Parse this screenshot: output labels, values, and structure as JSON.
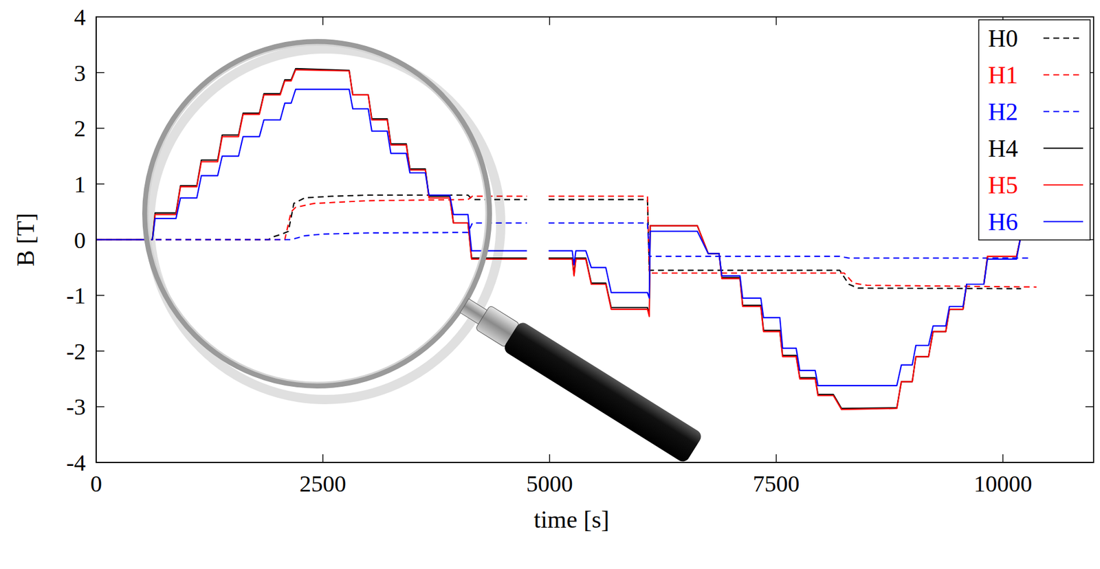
{
  "chart_data": {
    "type": "line",
    "x_label": "time [s]",
    "y_label": "B [T]",
    "xlim": [
      0,
      11000
    ],
    "ylim": [
      -4,
      4
    ],
    "xticks": [
      0,
      2500,
      5000,
      7500,
      10000
    ],
    "yticks": [
      -4,
      -3,
      -2,
      -1,
      0,
      1,
      2,
      3,
      4
    ],
    "grid": false,
    "legend": "top-right",
    "series": [
      {
        "name": "H0",
        "color": "#000000",
        "line_style": "dashed",
        "x": [
          0,
          1900,
          1950,
          2050,
          2120,
          2180,
          2300,
          2600,
          3000,
          4100,
          4150,
          4750,
          4870,
          4990,
          6080,
          6100,
          8200,
          8300,
          8400,
          10200
        ],
        "values": [
          0,
          0,
          0.05,
          0.1,
          0.15,
          0.65,
          0.75,
          0.78,
          0.8,
          0.8,
          0.72,
          0.72,
          null,
          0.72,
          0.72,
          -0.55,
          -0.55,
          -0.8,
          -0.87,
          -0.88
        ]
      },
      {
        "name": "H1",
        "color": "#ff0000",
        "line_style": "dashed",
        "x": [
          0,
          2080,
          2150,
          2200,
          2400,
          3000,
          4100,
          4150,
          4750,
          4870,
          4990,
          6080,
          6100,
          8250,
          8350,
          8500,
          10370
        ],
        "values": [
          0,
          0,
          0.5,
          0.58,
          0.65,
          0.7,
          0.72,
          0.78,
          0.78,
          null,
          0.78,
          0.78,
          -0.6,
          -0.6,
          -0.78,
          -0.82,
          -0.85
        ]
      },
      {
        "name": "H2",
        "color": "#0000ff",
        "line_style": "dashed",
        "x": [
          0,
          2150,
          2300,
          2500,
          3000,
          4100,
          4150,
          4750,
          4870,
          4990,
          6080,
          6100,
          8200,
          8300,
          10290
        ],
        "values": [
          0,
          0,
          0.07,
          0.1,
          0.12,
          0.13,
          0.3,
          0.3,
          null,
          0.3,
          0.3,
          -0.3,
          -0.3,
          -0.33,
          -0.33
        ]
      },
      {
        "name": "H4",
        "color": "#000000",
        "line_style": "solid",
        "x": [
          0,
          620,
          650,
          880,
          930,
          1110,
          1160,
          1340,
          1390,
          1570,
          1620,
          1800,
          1850,
          2030,
          2080,
          2150,
          2200,
          2790,
          2830,
          3000,
          3040,
          3210,
          3250,
          3420,
          3460,
          3630,
          3670,
          3900,
          3940,
          4100,
          4140,
          4750,
          4870,
          4990,
          5250,
          5270,
          5290,
          5400,
          5460,
          5620,
          5680,
          6080,
          6100,
          6110,
          6630,
          6750,
          6870,
          6900,
          7100,
          7130,
          7330,
          7360,
          7540,
          7570,
          7720,
          7760,
          7930,
          7960,
          8130,
          8220,
          8830,
          8880,
          9000,
          9040,
          9180,
          9230,
          9370,
          9410,
          9560,
          9600,
          9790,
          9830,
          10150,
          10190
        ],
        "values": [
          0,
          0,
          0.48,
          0.48,
          0.97,
          0.97,
          1.43,
          1.43,
          1.88,
          1.88,
          2.27,
          2.27,
          2.62,
          2.62,
          2.87,
          2.87,
          3.07,
          3.04,
          2.6,
          2.6,
          2.17,
          2.17,
          1.72,
          1.72,
          1.27,
          1.27,
          0.78,
          0.78,
          0.3,
          0.3,
          -0.33,
          -0.33,
          null,
          -0.33,
          -0.33,
          -0.62,
          -0.33,
          -0.33,
          -0.78,
          -0.78,
          -1.22,
          -1.22,
          -1.35,
          0.25,
          0.25,
          -0.25,
          -0.25,
          -0.68,
          -0.68,
          -1.18,
          -1.18,
          -1.63,
          -1.63,
          -2.08,
          -2.08,
          -2.48,
          -2.48,
          -2.78,
          -2.78,
          -3.03,
          -3.02,
          -2.55,
          -2.55,
          -2.1,
          -2.1,
          -1.65,
          -1.65,
          -1.25,
          -1.25,
          -0.8,
          -0.8,
          -0.3,
          -0.3,
          0
        ]
      },
      {
        "name": "H5",
        "color": "#ff0000",
        "line_style": "solid",
        "x": [
          0,
          620,
          650,
          880,
          930,
          1110,
          1160,
          1340,
          1390,
          1570,
          1620,
          1800,
          1850,
          2030,
          2080,
          2150,
          2200,
          2790,
          2830,
          3000,
          3040,
          3210,
          3250,
          3420,
          3460,
          3630,
          3670,
          3900,
          3940,
          4100,
          4140,
          4750,
          4870,
          4990,
          5250,
          5270,
          5290,
          5400,
          5460,
          5620,
          5680,
          6080,
          6100,
          6110,
          6630,
          6750,
          6870,
          6900,
          7100,
          7130,
          7330,
          7360,
          7540,
          7570,
          7720,
          7760,
          7930,
          7960,
          8130,
          8220,
          8830,
          8880,
          9000,
          9040,
          9180,
          9230,
          9370,
          9410,
          9560,
          9600,
          9790,
          9830,
          10150,
          10190
        ],
        "values": [
          0,
          0,
          0.45,
          0.45,
          0.95,
          0.95,
          1.4,
          1.4,
          1.85,
          1.85,
          2.25,
          2.25,
          2.6,
          2.6,
          2.85,
          2.85,
          3.05,
          3.03,
          2.6,
          2.6,
          2.15,
          2.15,
          1.7,
          1.7,
          1.25,
          1.25,
          0.75,
          0.75,
          0.3,
          0.3,
          -0.35,
          -0.35,
          null,
          -0.35,
          -0.35,
          -0.65,
          -0.35,
          -0.35,
          -0.8,
          -0.8,
          -1.25,
          -1.25,
          -1.38,
          0.25,
          0.25,
          -0.25,
          -0.25,
          -0.7,
          -0.7,
          -1.2,
          -1.2,
          -1.65,
          -1.65,
          -2.1,
          -2.1,
          -2.5,
          -2.5,
          -2.8,
          -2.8,
          -3.05,
          -3.03,
          -2.55,
          -2.55,
          -2.1,
          -2.1,
          -1.65,
          -1.65,
          -1.25,
          -1.25,
          -0.8,
          -0.8,
          -0.3,
          -0.3,
          0
        ]
      },
      {
        "name": "H6",
        "color": "#0000ff",
        "line_style": "solid",
        "x": [
          0,
          620,
          650,
          880,
          930,
          1110,
          1160,
          1340,
          1390,
          1570,
          1620,
          1800,
          1850,
          2030,
          2080,
          2150,
          2200,
          2790,
          2830,
          3000,
          3040,
          3210,
          3250,
          3420,
          3460,
          3630,
          3670,
          3900,
          3940,
          4100,
          4140,
          4750,
          4870,
          4990,
          5250,
          5270,
          5290,
          5400,
          5460,
          5620,
          5680,
          6080,
          6100,
          6110,
          6630,
          6750,
          6870,
          6900,
          7100,
          7130,
          7330,
          7360,
          7540,
          7570,
          7720,
          7760,
          7930,
          7960,
          8130,
          8220,
          8830,
          8880,
          9000,
          9040,
          9180,
          9230,
          9370,
          9410,
          9560,
          9600,
          9790,
          9830,
          10150,
          10190
        ],
        "values": [
          0,
          0,
          0.38,
          0.38,
          0.75,
          0.75,
          1.15,
          1.15,
          1.5,
          1.5,
          1.85,
          1.85,
          2.15,
          2.15,
          2.45,
          2.45,
          2.7,
          2.7,
          2.35,
          2.35,
          1.95,
          1.95,
          1.55,
          1.55,
          1.2,
          1.2,
          0.8,
          0.8,
          0.45,
          0.45,
          -0.2,
          -0.2,
          null,
          -0.2,
          -0.2,
          -0.45,
          -0.2,
          -0.2,
          -0.5,
          -0.5,
          -0.95,
          -0.95,
          -1.05,
          0.15,
          0.15,
          -0.25,
          -0.25,
          -0.65,
          -0.65,
          -1.05,
          -1.05,
          -1.4,
          -1.4,
          -1.95,
          -1.95,
          -2.35,
          -2.35,
          -2.62,
          -2.62,
          -2.62,
          -2.62,
          -2.25,
          -2.25,
          -1.9,
          -1.9,
          -1.55,
          -1.55,
          -1.2,
          -1.2,
          -0.8,
          -0.8,
          -0.35,
          -0.35,
          0
        ]
      }
    ]
  }
}
